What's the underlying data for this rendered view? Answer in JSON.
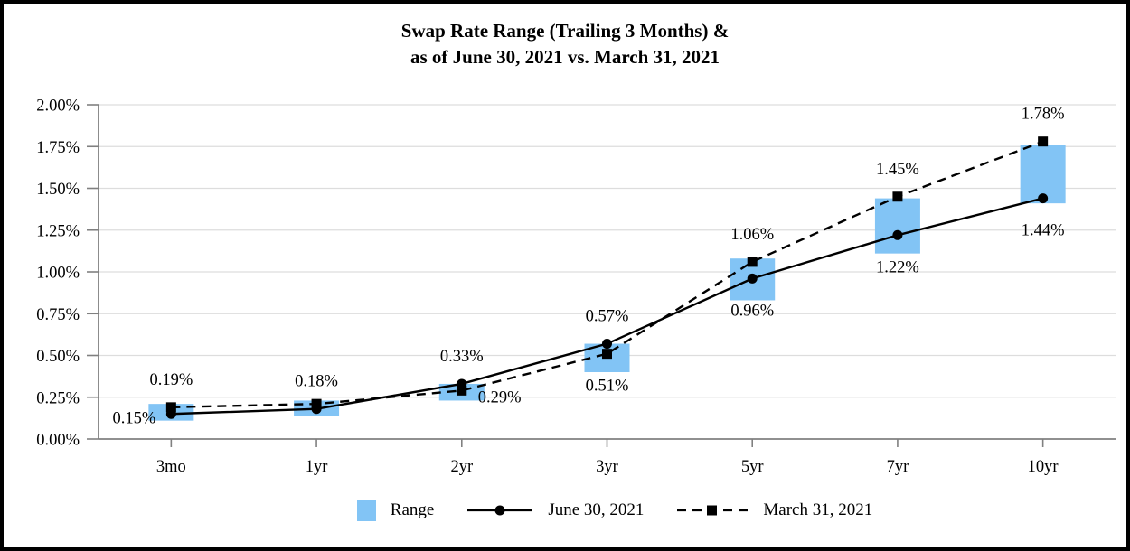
{
  "title": {
    "line1": "Swap Rate Range (Trailing 3 Months) &",
    "line2": "as of June 30, 2021 vs. March 31, 2021"
  },
  "legend": {
    "range_label": "Range"
  },
  "colors": {
    "bar_fill": "#82C4F5",
    "series_line": "#000000",
    "gridline": "#DDDDDD",
    "axis": "#808080",
    "background": "#FFFFFF",
    "frame_border": "#000000",
    "label_text": "#000000"
  },
  "chart_data": {
    "type": "bar+line combo (floating range bars with two line series)",
    "title": "Swap Rate Range (Trailing 3 Months) & as of June 30, 2021 vs. March 31, 2021",
    "categories": [
      "3mo",
      "1yr",
      "2yr",
      "3yr",
      "5yr",
      "7yr",
      "10yr"
    ],
    "yticks": [
      "0.00%",
      "0.25%",
      "0.50%",
      "0.75%",
      "1.00%",
      "1.25%",
      "1.50%",
      "1.75%",
      "2.00%"
    ],
    "ylim": [
      0,
      2.0
    ],
    "y_unit": "%",
    "grid": "horizontal",
    "legend_position": "bottom",
    "range_series": {
      "name": "Range",
      "low": [
        0.11,
        0.14,
        0.23,
        0.4,
        0.83,
        1.11,
        1.41
      ],
      "high": [
        0.21,
        0.23,
        0.33,
        0.57,
        1.08,
        1.44,
        1.76
      ]
    },
    "series": [
      {
        "name": "June 30, 2021",
        "marker": "circle",
        "line_style": "solid",
        "values": [
          0.15,
          0.18,
          0.33,
          0.57,
          0.96,
          1.22,
          1.44
        ],
        "labels": [
          "0.15%",
          "0.18%",
          "0.33%",
          "0.57%",
          "0.96%",
          "1.22%",
          "1.44%"
        ],
        "label_positions": [
          "left",
          "above",
          "above",
          "above",
          "below",
          "below",
          "below"
        ]
      },
      {
        "name": "March 31, 2021",
        "marker": "square",
        "line_style": "dashed",
        "values": [
          0.19,
          0.21,
          0.29,
          0.51,
          1.06,
          1.45,
          1.78
        ],
        "labels": [
          "0.19%",
          null,
          "0.29%",
          "0.51%",
          "1.06%",
          "1.45%",
          "1.78%"
        ],
        "label_positions": [
          "above",
          null,
          "right",
          "below",
          "above",
          "above",
          "above"
        ]
      }
    ]
  }
}
